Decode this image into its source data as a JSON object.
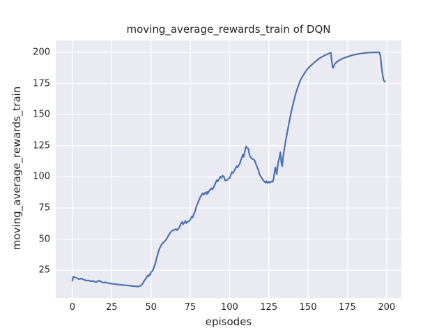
{
  "chart_data": {
    "type": "line",
    "title": "moving_average_rewards_train of DQN",
    "xlabel": "episodes",
    "ylabel": "moving_average_rewards_train",
    "x_ticks": [
      0,
      25,
      50,
      75,
      100,
      125,
      150,
      175,
      200
    ],
    "y_ticks": [
      25,
      50,
      75,
      100,
      125,
      150,
      175,
      200
    ],
    "xlim": [
      -10.6,
      209.4
    ],
    "ylim": [
      2.7,
      209.5
    ],
    "grid": true,
    "legend_position": "none",
    "colors": {
      "figure_background": "#FFFFFF",
      "plot_background": "#EAEAF2",
      "grid": "#FFFFFF",
      "text": "#262626",
      "line": "#4C72B0"
    },
    "series": [
      {
        "name": "moving_average_rewards_train",
        "color": "#4C72B0",
        "points": [
          [
            0,
            16.5
          ],
          [
            0.5,
            19.8
          ],
          [
            1,
            19.5
          ],
          [
            2,
            19.2
          ],
          [
            3,
            18.5
          ],
          [
            4,
            17.9
          ],
          [
            5,
            18.1
          ],
          [
            6,
            18.4
          ],
          [
            7,
            17.5
          ],
          [
            8,
            17.2
          ],
          [
            9,
            16.6
          ],
          [
            10,
            16.9
          ],
          [
            11,
            16.5
          ],
          [
            12,
            16.1
          ],
          [
            13,
            16.5
          ],
          [
            14,
            15.8
          ],
          [
            15,
            15.5
          ],
          [
            16,
            16.0
          ],
          [
            17,
            16.8
          ],
          [
            18,
            16.0
          ],
          [
            19,
            15.2
          ],
          [
            20,
            15.0
          ],
          [
            21,
            15.4
          ],
          [
            22,
            14.8
          ],
          [
            23,
            14.6
          ],
          [
            24,
            14.4
          ],
          [
            25,
            14.2
          ],
          [
            26,
            14.0
          ],
          [
            27,
            13.9
          ],
          [
            28,
            13.7
          ],
          [
            29,
            13.6
          ],
          [
            30,
            13.4
          ],
          [
            31,
            13.3
          ],
          [
            32,
            13.1
          ],
          [
            33,
            13.0
          ],
          [
            34,
            12.9
          ],
          [
            35,
            12.8
          ],
          [
            36,
            12.6
          ],
          [
            37,
            12.5
          ],
          [
            38,
            12.3
          ],
          [
            39,
            12.2
          ],
          [
            40,
            12.1
          ],
          [
            41,
            12.0
          ],
          [
            42,
            11.9
          ],
          [
            43,
            12.3
          ],
          [
            44,
            13.2
          ],
          [
            45,
            15.0
          ],
          [
            46,
            17.0
          ],
          [
            47,
            18.8
          ],
          [
            48,
            20.7
          ],
          [
            48.5,
            20.0
          ],
          [
            49,
            21.8
          ],
          [
            49.5,
            21.2
          ],
          [
            50,
            23.4
          ],
          [
            51,
            24.5
          ],
          [
            52,
            27.5
          ],
          [
            53,
            31.5
          ],
          [
            54,
            36.5
          ],
          [
            55,
            41.0
          ],
          [
            56,
            44.0
          ],
          [
            57,
            46.0
          ],
          [
            58,
            47.3
          ],
          [
            59,
            48.7
          ],
          [
            60,
            50.2
          ],
          [
            61,
            52.6
          ],
          [
            62,
            54.6
          ],
          [
            63,
            56.2
          ],
          [
            64,
            57.1
          ],
          [
            65,
            57.5
          ],
          [
            66,
            58.1
          ],
          [
            66.5,
            57.1
          ],
          [
            67,
            57.6
          ],
          [
            68,
            59.2
          ],
          [
            69,
            62.2
          ],
          [
            70,
            63.9
          ],
          [
            70.5,
            61.9
          ],
          [
            71,
            62.8
          ],
          [
            72,
            64.6
          ],
          [
            72.5,
            62.8
          ],
          [
            73,
            63.7
          ],
          [
            74,
            64.1
          ],
          [
            75,
            65.5
          ],
          [
            76,
            68.1
          ],
          [
            76.5,
            67.3
          ],
          [
            77,
            69.2
          ],
          [
            78,
            72.1
          ],
          [
            79,
            76.5
          ],
          [
            80,
            79.6
          ],
          [
            81,
            82.6
          ],
          [
            82,
            85.1
          ],
          [
            83,
            86.9
          ],
          [
            83.5,
            85.4
          ],
          [
            84,
            86.6
          ],
          [
            85,
            87.7
          ],
          [
            85.5,
            86.0
          ],
          [
            86,
            87.9
          ],
          [
            86.5,
            87.1
          ],
          [
            87,
            88.6
          ],
          [
            88,
            90.2
          ],
          [
            88.5,
            90.8
          ],
          [
            89,
            89.9
          ],
          [
            90,
            91.7
          ],
          [
            91,
            95.0
          ],
          [
            92,
            97.3
          ],
          [
            92.5,
            96.3
          ],
          [
            93,
            97.5
          ],
          [
            93.5,
            98.2
          ],
          [
            94,
            100.1
          ],
          [
            95,
            99.1
          ],
          [
            95.5,
            101.0
          ],
          [
            96.5,
            100.1
          ],
          [
            97,
            97.3
          ],
          [
            98,
            97.0
          ],
          [
            99,
            98.2
          ],
          [
            100,
            99.1
          ],
          [
            101,
            102.0
          ],
          [
            101.5,
            103.8
          ],
          [
            102,
            102.9
          ],
          [
            103,
            104.8
          ],
          [
            104,
            107.1
          ],
          [
            104.5,
            108.5
          ],
          [
            105,
            107.6
          ],
          [
            106,
            109.4
          ],
          [
            106.5,
            110.4
          ],
          [
            107,
            112.5
          ],
          [
            108,
            116.0
          ],
          [
            108.5,
            117.9
          ],
          [
            109,
            116.0
          ],
          [
            110,
            121.5
          ],
          [
            110.5,
            124.4
          ],
          [
            111,
            123.6
          ],
          [
            112,
            122.6
          ],
          [
            112.5,
            118.8
          ],
          [
            113,
            116.6
          ],
          [
            114,
            114.8
          ],
          [
            115,
            114.2
          ],
          [
            116,
            113.3
          ],
          [
            116.5,
            111.4
          ],
          [
            117,
            109.5
          ],
          [
            118,
            106.7
          ],
          [
            118.5,
            104.8
          ],
          [
            119,
            102.1
          ],
          [
            120,
            100.1
          ],
          [
            121,
            98.1
          ],
          [
            122,
            96.4
          ],
          [
            123,
            95.4
          ],
          [
            123.5,
            96.6
          ],
          [
            124,
            95.1
          ],
          [
            125,
            96.1
          ],
          [
            125.5,
            95.3
          ],
          [
            126,
            95.6
          ],
          [
            127,
            96.6
          ],
          [
            127.5,
            96.0
          ],
          [
            128,
            98.1
          ],
          [
            129,
            106.6
          ],
          [
            129.3,
            107.6
          ],
          [
            130,
            102.0
          ],
          [
            131,
            111.3
          ],
          [
            132,
            117.0
          ],
          [
            132.4,
            119.8
          ],
          [
            133,
            111.1
          ],
          [
            133.6,
            108.5
          ],
          [
            134,
            115.1
          ],
          [
            135,
            123.5
          ],
          [
            136,
            130.5
          ],
          [
            137,
            137.5
          ],
          [
            138,
            144.1
          ],
          [
            139,
            150.3
          ],
          [
            140,
            156.1
          ],
          [
            141,
            161.2
          ],
          [
            142,
            166.1
          ],
          [
            143,
            170.2
          ],
          [
            144,
            174.0
          ],
          [
            145,
            177.2
          ],
          [
            146,
            179.7
          ],
          [
            147,
            181.6
          ],
          [
            148,
            183.7
          ],
          [
            149,
            185.6
          ],
          [
            150,
            187.1
          ],
          [
            151,
            188.6
          ],
          [
            152,
            189.7
          ],
          [
            153,
            190.7
          ],
          [
            154,
            191.9
          ],
          [
            155,
            192.9
          ],
          [
            156,
            194.1
          ],
          [
            157,
            194.9
          ],
          [
            158,
            195.8
          ],
          [
            159,
            196.4
          ],
          [
            160,
            197.1
          ],
          [
            161,
            197.8
          ],
          [
            162,
            198.4
          ],
          [
            163,
            198.9
          ],
          [
            164,
            199.4
          ],
          [
            164.5,
            199.7
          ],
          [
            165,
            193.6
          ],
          [
            165.6,
            188.0
          ],
          [
            166,
            187.5
          ],
          [
            166.5,
            189.1
          ],
          [
            167,
            190.6
          ],
          [
            168,
            191.9
          ],
          [
            169,
            192.9
          ],
          [
            170,
            193.7
          ],
          [
            171,
            194.4
          ],
          [
            172,
            195.0
          ],
          [
            173,
            195.5
          ],
          [
            174,
            196.0
          ],
          [
            175,
            196.4
          ],
          [
            176,
            196.8
          ],
          [
            177,
            197.2
          ],
          [
            178,
            197.6
          ],
          [
            179,
            197.9
          ],
          [
            180,
            198.2
          ],
          [
            181,
            198.5
          ],
          [
            182,
            198.7
          ],
          [
            183,
            198.9
          ],
          [
            184,
            199.1
          ],
          [
            185,
            199.3
          ],
          [
            186,
            199.4
          ],
          [
            187,
            199.6
          ],
          [
            188,
            199.7
          ],
          [
            189,
            199.8
          ],
          [
            190,
            199.8
          ],
          [
            191,
            199.9
          ],
          [
            192,
            199.9
          ],
          [
            193,
            199.9
          ],
          [
            194,
            199.9
          ],
          [
            195,
            199.9
          ],
          [
            195.5,
            199.9
          ],
          [
            196,
            197.0
          ],
          [
            196.5,
            192.0
          ],
          [
            197,
            186.0
          ],
          [
            197.5,
            181.5
          ],
          [
            198,
            178.0
          ],
          [
            198.5,
            176.8
          ],
          [
            199,
            176.3
          ]
        ]
      }
    ]
  }
}
